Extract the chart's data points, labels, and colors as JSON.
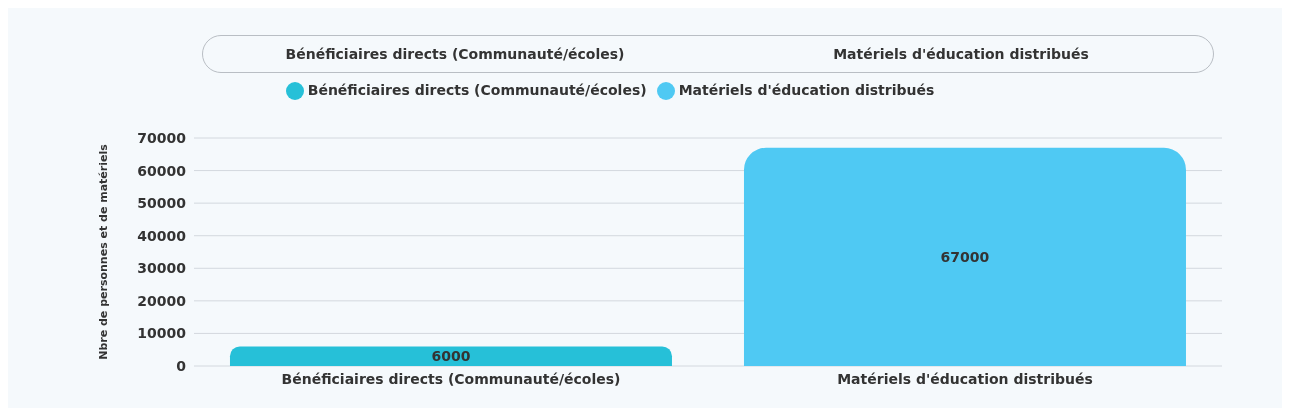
{
  "chart_data": {
    "type": "bar",
    "ylabel": "Nbre de personnes et de matériels",
    "categories": [
      "Bénéficiaires directs (Communauté/écoles)",
      "Matériels d'éducation distribués"
    ],
    "series": [
      {
        "name": "Bénéficiaires directs (Communauté/écoles)",
        "color": "#26c0d8",
        "values": [
          6000,
          null
        ]
      },
      {
        "name": "Matériels d'éducation distribués",
        "color": "#4fc9f3",
        "values": [
          null,
          67000
        ]
      }
    ],
    "stacked": true,
    "ylim": [
      0,
      70000
    ],
    "yticks": [
      0,
      10000,
      20000,
      30000,
      40000,
      50000,
      60000,
      70000
    ],
    "grid": "y",
    "legend": "top",
    "data_labels": true
  }
}
